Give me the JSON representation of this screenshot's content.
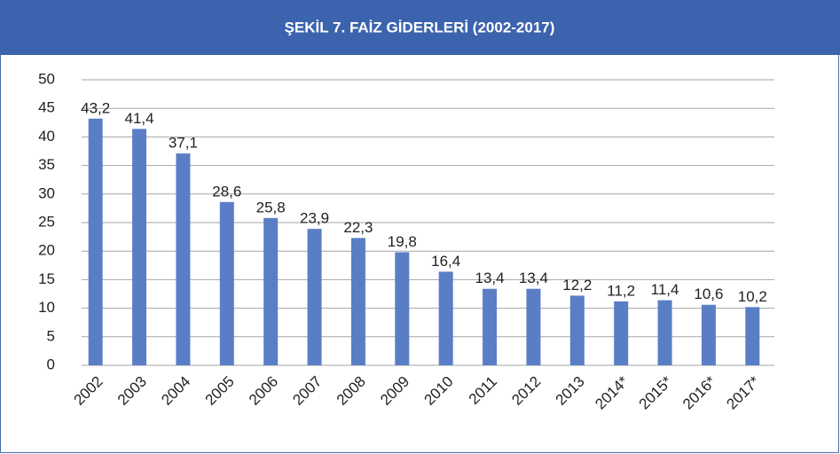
{
  "chart_data": {
    "type": "bar",
    "title": "ŞEKİL 7. FAİZ GİDERLERİ (2002-2017)",
    "categories": [
      "2002",
      "2003",
      "2004",
      "2005",
      "2006",
      "2007",
      "2008",
      "2009",
      "2010",
      "2011",
      "2012",
      "2013",
      "2014*",
      "2015*",
      "2016*",
      "2017*"
    ],
    "values": [
      43.2,
      41.4,
      37.1,
      28.6,
      25.8,
      23.9,
      22.3,
      19.8,
      16.4,
      13.4,
      13.4,
      12.2,
      11.2,
      11.4,
      10.6,
      10.2
    ],
    "value_labels": [
      "43,2",
      "41,4",
      "37,1",
      "28,6",
      "25,8",
      "23,9",
      "22,3",
      "19,8",
      "16,4",
      "13,4",
      "13,4",
      "12,2",
      "11,2",
      "11,4",
      "10,6",
      "10,2"
    ],
    "color": "#5a7ec6",
    "ylim": [
      0,
      50
    ],
    "yticks": [
      0,
      5,
      10,
      15,
      20,
      25,
      30,
      35,
      40,
      45,
      50
    ],
    "grid": true
  }
}
